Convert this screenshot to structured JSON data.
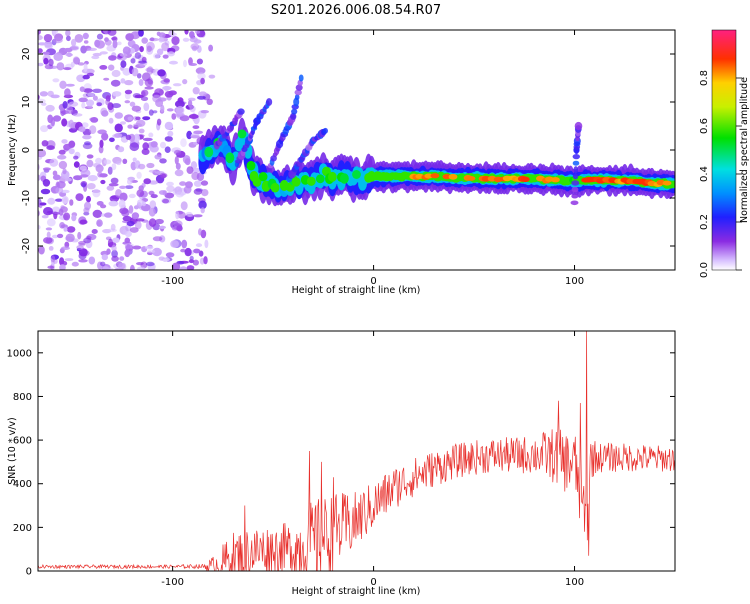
{
  "title": "S201.2026.006.08.54.R07",
  "chart_data": [
    {
      "type": "heatmap",
      "xlabel": "Height of straight line (km)",
      "ylabel": "Frequency (Hz)",
      "xlim": [
        -167,
        150
      ],
      "ylim": [
        -25,
        25
      ],
      "xticks": [
        -100,
        0,
        100
      ],
      "yticks": [
        -20,
        -10,
        0,
        10,
        20
      ],
      "colorbar": {
        "label": "Normalized spectral amplitude",
        "range": [
          0,
          1
        ],
        "ticks": [
          "0.0",
          "0.2",
          "0.4",
          "0.6",
          "0.8"
        ],
        "tick_values": [
          0,
          0.2,
          0.4,
          0.6,
          0.8
        ]
      },
      "noise_region_x": [
        -167,
        -83
      ],
      "ridge": [
        {
          "x": -85,
          "y": -1.5,
          "a": 0.35
        },
        {
          "x": -80,
          "y": 0.5,
          "a": 0.5
        },
        {
          "x": -75,
          "y": 1.5,
          "a": 0.45
        },
        {
          "x": -70,
          "y": -2.5,
          "a": 0.45
        },
        {
          "x": -65,
          "y": 3.0,
          "a": 0.5
        },
        {
          "x": -60,
          "y": -5.0,
          "a": 0.5
        },
        {
          "x": -55,
          "y": -6.5,
          "a": 0.55
        },
        {
          "x": -50,
          "y": -7.0,
          "a": 0.55
        },
        {
          "x": -45,
          "y": -8.0,
          "a": 0.5
        },
        {
          "x": -40,
          "y": -7.0,
          "a": 0.55
        },
        {
          "x": -35,
          "y": -6.5,
          "a": 0.5
        },
        {
          "x": -30,
          "y": -6.5,
          "a": 0.55
        },
        {
          "x": -25,
          "y": -5.0,
          "a": 0.55
        },
        {
          "x": -20,
          "y": -6.5,
          "a": 0.6
        },
        {
          "x": -15,
          "y": -5.5,
          "a": 0.55
        },
        {
          "x": -10,
          "y": -6.0,
          "a": 0.6
        },
        {
          "x": -5,
          "y": -6.0,
          "a": 0.6
        },
        {
          "x": 0,
          "y": -5.5,
          "a": 0.75
        },
        {
          "x": 5,
          "y": -5.5,
          "a": 0.7
        },
        {
          "x": 10,
          "y": -5.5,
          "a": 0.75
        },
        {
          "x": 20,
          "y": -5.5,
          "a": 0.8
        },
        {
          "x": 30,
          "y": -5.5,
          "a": 0.85
        },
        {
          "x": 40,
          "y": -5.8,
          "a": 0.8
        },
        {
          "x": 50,
          "y": -5.8,
          "a": 0.8
        },
        {
          "x": 60,
          "y": -6.0,
          "a": 0.85
        },
        {
          "x": 70,
          "y": -6.0,
          "a": 0.9
        },
        {
          "x": 80,
          "y": -6.0,
          "a": 0.85
        },
        {
          "x": 90,
          "y": -6.2,
          "a": 0.8
        },
        {
          "x": 100,
          "y": -6.5,
          "a": 0.6
        },
        {
          "x": 105,
          "y": -6.3,
          "a": 0.95
        },
        {
          "x": 110,
          "y": -6.3,
          "a": 0.95
        },
        {
          "x": 120,
          "y": -6.3,
          "a": 0.95
        },
        {
          "x": 130,
          "y": -6.5,
          "a": 0.9
        },
        {
          "x": 140,
          "y": -7.0,
          "a": 0.85
        },
        {
          "x": 150,
          "y": -7.0,
          "a": 0.8
        }
      ],
      "streaks": [
        {
          "x": [
            -78,
            -72,
            -66
          ],
          "y": [
            1,
            4,
            8
          ]
        },
        {
          "x": [
            -68,
            -62,
            -58,
            -52
          ],
          "y": [
            -3,
            2,
            6,
            10
          ]
        },
        {
          "x": [
            -52,
            -46,
            -40,
            -36
          ],
          "y": [
            -4,
            2,
            7,
            15
          ]
        },
        {
          "x": [
            -42,
            -36,
            -30,
            -24
          ],
          "y": [
            -6,
            -2,
            2,
            4
          ]
        },
        {
          "x": [
            100,
            101,
            102
          ],
          "y": [
            -11,
            0,
            5
          ]
        }
      ]
    },
    {
      "type": "line",
      "xlabel": "Height of straight line (km)",
      "ylabel": "SNR (10 * v/v)",
      "xlim": [
        -167,
        150
      ],
      "ylim": [
        0,
        1100
      ],
      "xticks": [
        -100,
        0,
        100
      ],
      "yticks": [
        0,
        200,
        400,
        600,
        800,
        1000
      ],
      "color": "#e8302c",
      "baseline": [
        [
          -167,
          20
        ],
        [
          -100,
          20
        ],
        [
          -80,
          22
        ],
        [
          -70,
          60
        ],
        [
          -60,
          90
        ],
        [
          -50,
          100
        ],
        [
          -40,
          100
        ],
        [
          -30,
          130
        ],
        [
          -20,
          180
        ],
        [
          -10,
          220
        ],
        [
          0,
          300
        ],
        [
          10,
          380
        ],
        [
          20,
          430
        ],
        [
          30,
          470
        ],
        [
          40,
          500
        ],
        [
          50,
          520
        ],
        [
          60,
          530
        ],
        [
          70,
          530
        ],
        [
          80,
          535
        ],
        [
          90,
          530
        ],
        [
          95,
          500
        ],
        [
          100,
          500
        ],
        [
          104,
          300
        ],
        [
          106,
          200
        ],
        [
          108,
          520
        ],
        [
          120,
          520
        ],
        [
          130,
          520
        ],
        [
          140,
          515
        ],
        [
          150,
          515
        ]
      ],
      "amplitude": [
        [
          -167,
          8
        ],
        [
          -100,
          8
        ],
        [
          -85,
          10
        ],
        [
          -78,
          60
        ],
        [
          -70,
          120
        ],
        [
          -60,
          120
        ],
        [
          -50,
          110
        ],
        [
          -40,
          130
        ],
        [
          -30,
          200
        ],
        [
          -20,
          180
        ],
        [
          -10,
          140
        ],
        [
          0,
          110
        ],
        [
          20,
          90
        ],
        [
          40,
          80
        ],
        [
          60,
          80
        ],
        [
          80,
          90
        ],
        [
          90,
          130
        ],
        [
          100,
          150
        ],
        [
          104,
          180
        ],
        [
          108,
          100
        ],
        [
          112,
          70
        ],
        [
          150,
          60
        ]
      ],
      "spikes": [
        {
          "x": -32,
          "y": 550
        },
        {
          "x": -26,
          "y": 500
        },
        {
          "x": -20,
          "y": 430
        },
        {
          "x": -64,
          "y": 300
        },
        {
          "x": 92,
          "y": 780
        },
        {
          "x": 103,
          "y": 770
        },
        {
          "x": 106,
          "y": 1100
        },
        {
          "x": 107,
          "y": 70
        },
        {
          "x": 105,
          "y": 180
        }
      ]
    }
  ]
}
